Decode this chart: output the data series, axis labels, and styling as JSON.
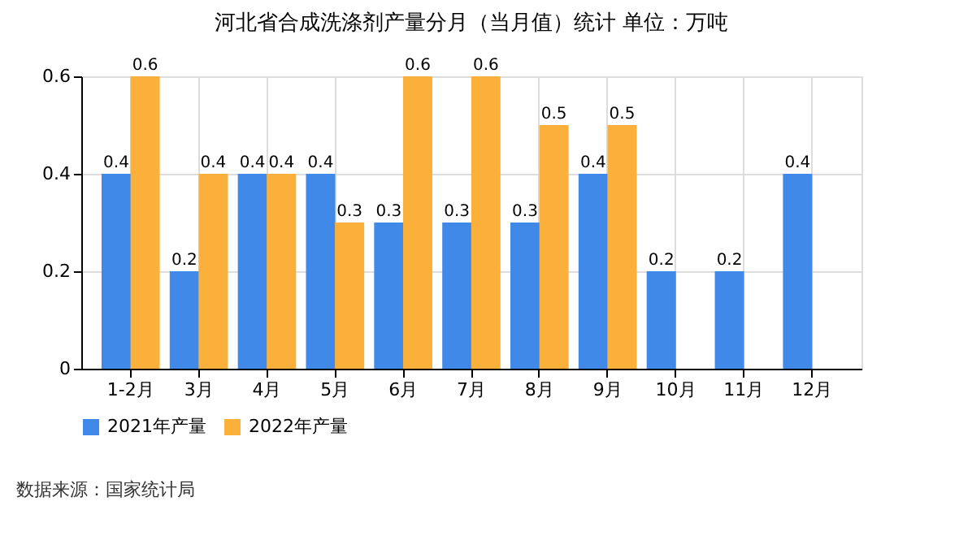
{
  "chart_data": {
    "type": "bar",
    "title": "河北省合成洗涤剂产量分月（当月值）统计  单位：万吨",
    "categories": [
      "1-2月",
      "3月",
      "4月",
      "5月",
      "6月",
      "7月",
      "8月",
      "9月",
      "10月",
      "11月",
      "12月"
    ],
    "series": [
      {
        "name": "2021年产量",
        "color": "#4189e8",
        "values": [
          0.4,
          0.2,
          0.4,
          0.4,
          0.3,
          0.3,
          0.3,
          0.4,
          0.2,
          0.2,
          0.4
        ]
      },
      {
        "name": "2022年产量",
        "color": "#fbb03b",
        "values": [
          0.6,
          0.4,
          0.4,
          0.3,
          0.6,
          0.6,
          0.5,
          0.5,
          null,
          null,
          null
        ]
      }
    ],
    "ylim": [
      0,
      0.6
    ],
    "yticks": [
      0,
      0.2,
      0.4,
      0.6
    ],
    "grid": true,
    "legend": "bottom",
    "data_labels": true,
    "annotations": [
      "数据来源：国家统计局"
    ]
  }
}
